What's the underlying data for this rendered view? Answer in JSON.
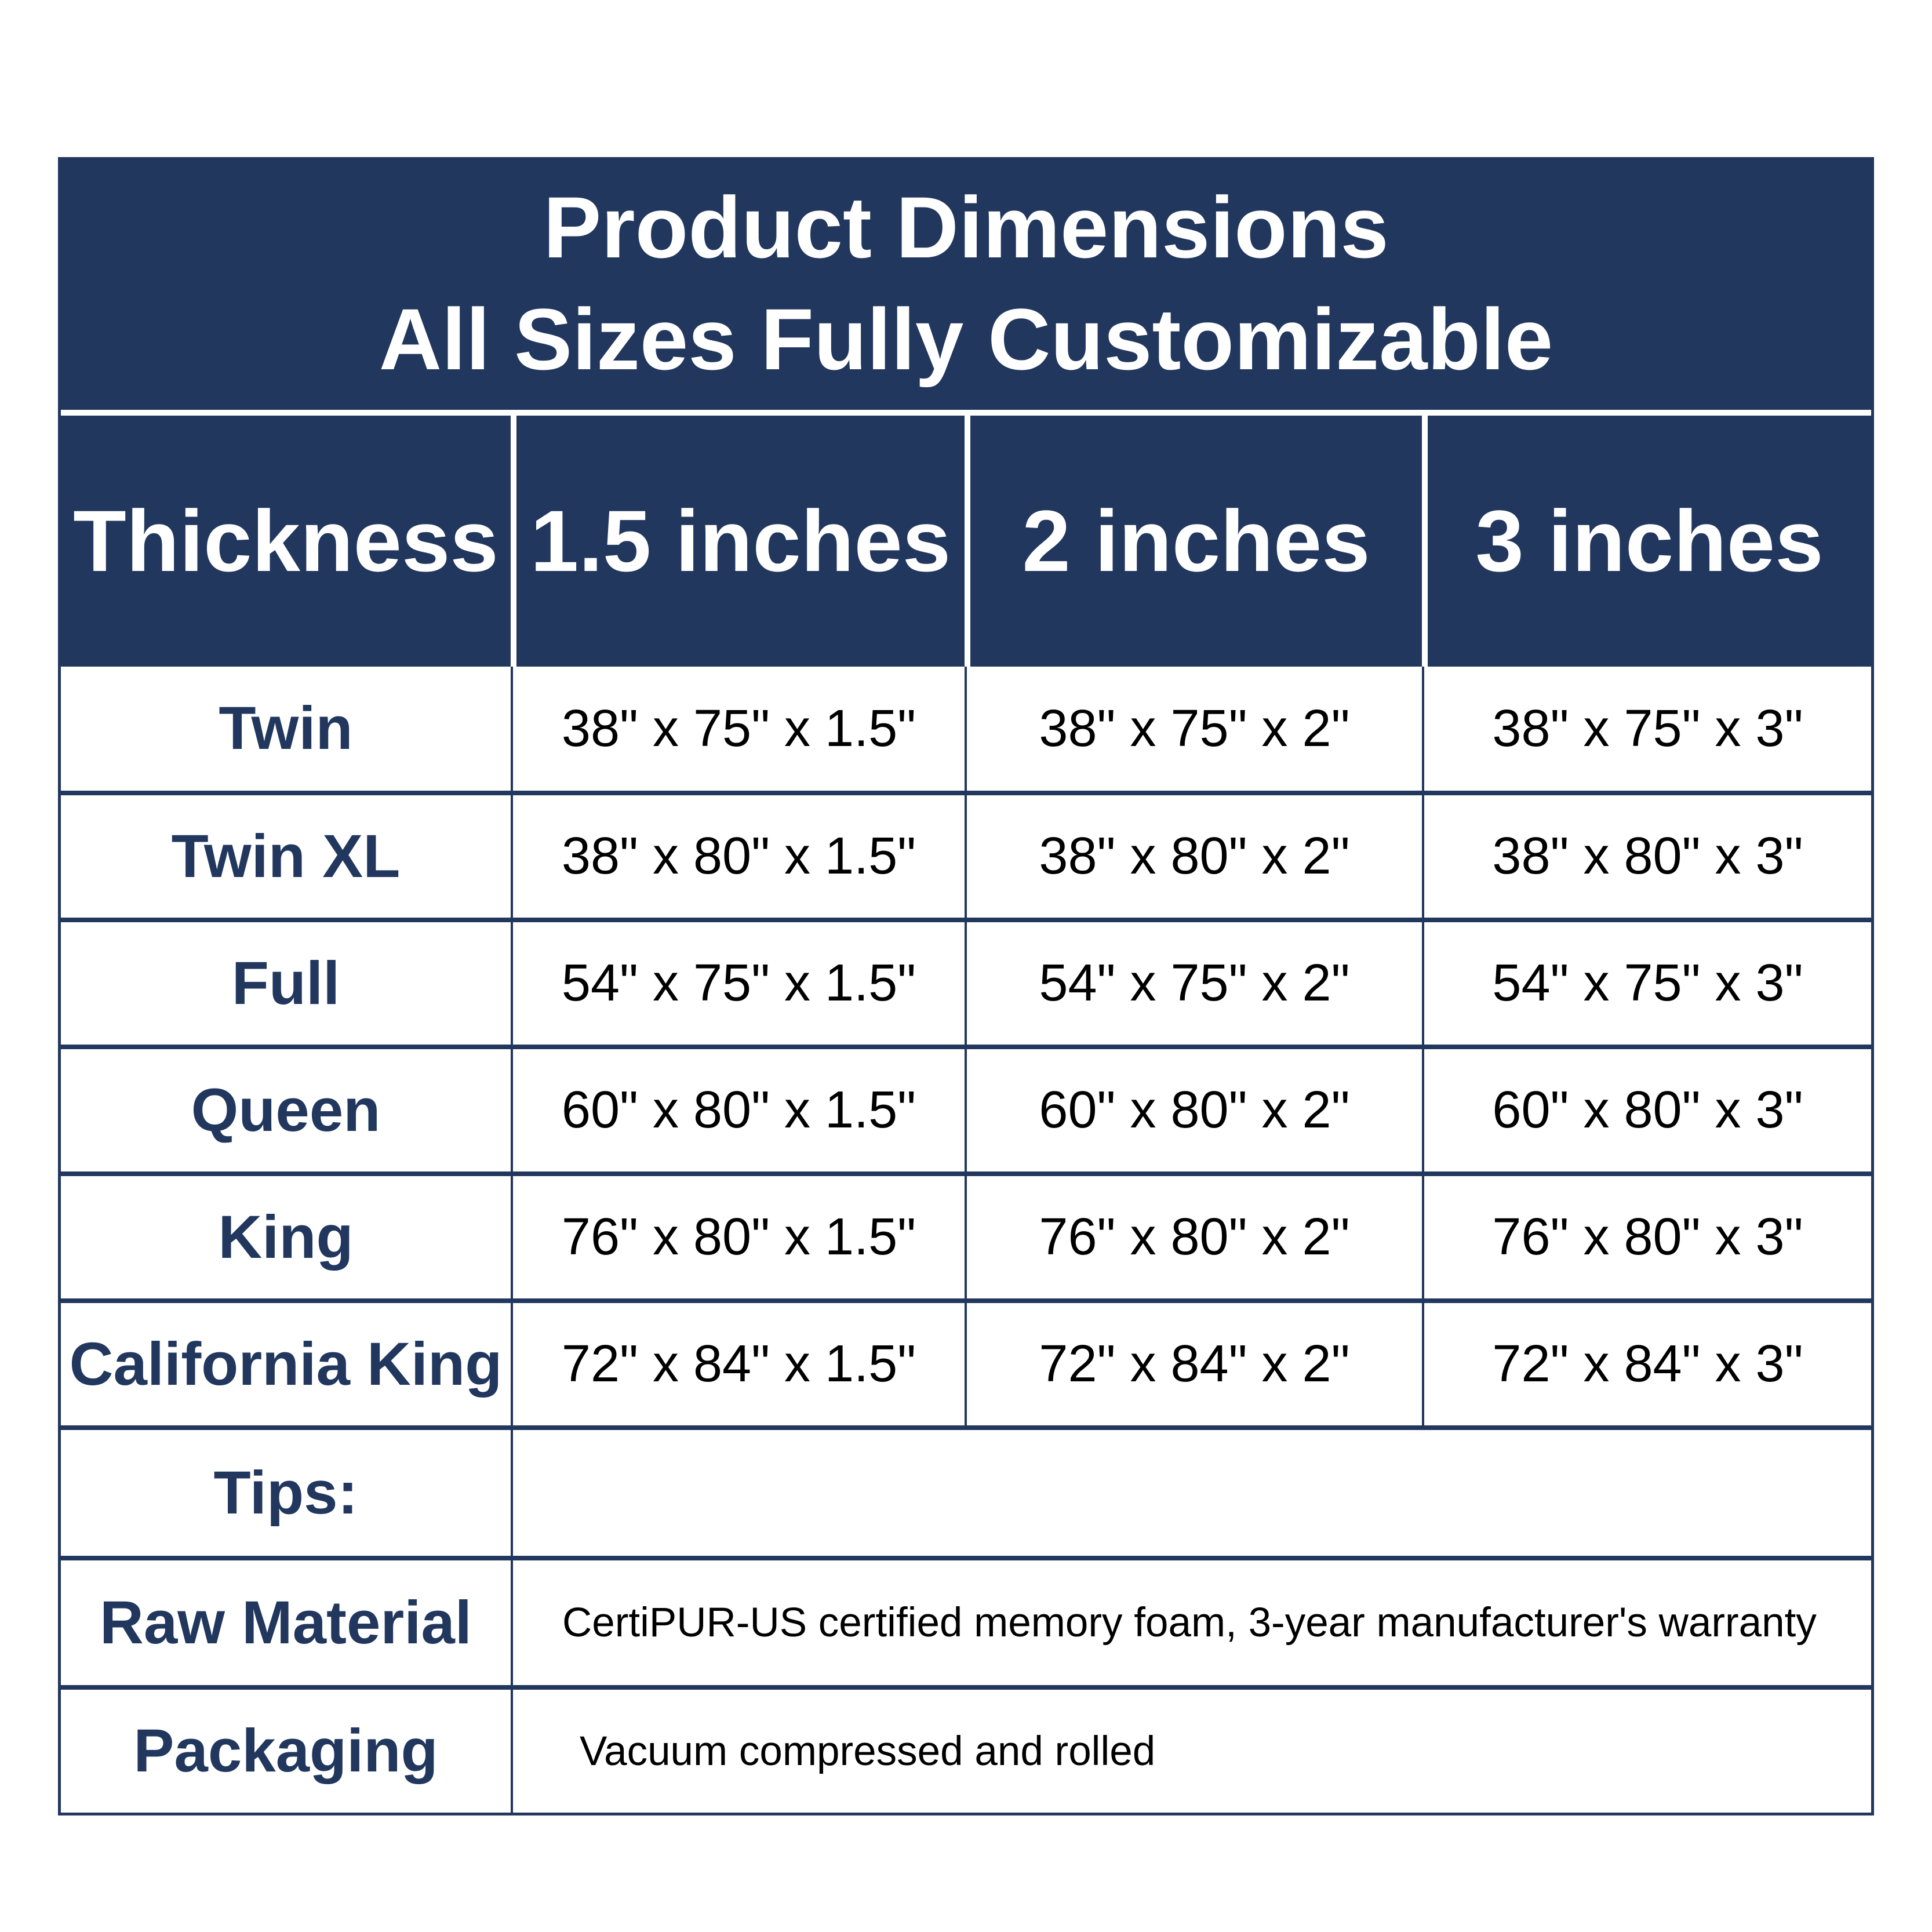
{
  "title": {
    "line1": "Product Dimensions",
    "line2": "All Sizes Fully Customizable"
  },
  "columns": [
    "Thickness",
    "1.5 inches",
    "2 inches",
    "3 inches"
  ],
  "rows": [
    {
      "label": "Twin",
      "values": [
        "38\" x 75\" x 1.5\"",
        "38\" x 75\" x 2\"",
        "38\" x 75\" x 3\""
      ]
    },
    {
      "label": "Twin XL",
      "values": [
        "38\" x 80\" x 1.5\"",
        "38\" x 80\" x 2\"",
        "38\" x 80\" x 3\""
      ]
    },
    {
      "label": "Full",
      "values": [
        "54\" x 75\" x 1.5\"",
        "54\" x 75\" x 2\"",
        "54\" x 75\" x 3\""
      ]
    },
    {
      "label": "Queen",
      "values": [
        "60\" x 80\" x 1.5\"",
        "60\" x 80\" x 2\"",
        "60\" x 80\" x 3\""
      ]
    },
    {
      "label": "King",
      "values": [
        "76\" x 80\" x 1.5\"",
        "76\" x 80\" x 2\"",
        "76\" x 80\" x 3\""
      ]
    },
    {
      "label": "California King",
      "values": [
        "72\" x 84\" x 1.5\"",
        "72\" x 84\" x 2\"",
        "72\" x 84\" x 3\""
      ]
    }
  ],
  "info_rows": [
    {
      "label": "Tips:",
      "value": ""
    },
    {
      "label": "Raw Material",
      "value": "CertiPUR-US certified memory foam, 3-year manufacturer's warranty"
    },
    {
      "label": "Packaging",
      "value": "Vacuum compressed and rolled"
    }
  ],
  "colors": {
    "navy": "#22375E",
    "text_black": "#000000",
    "background": "#ffffff"
  }
}
